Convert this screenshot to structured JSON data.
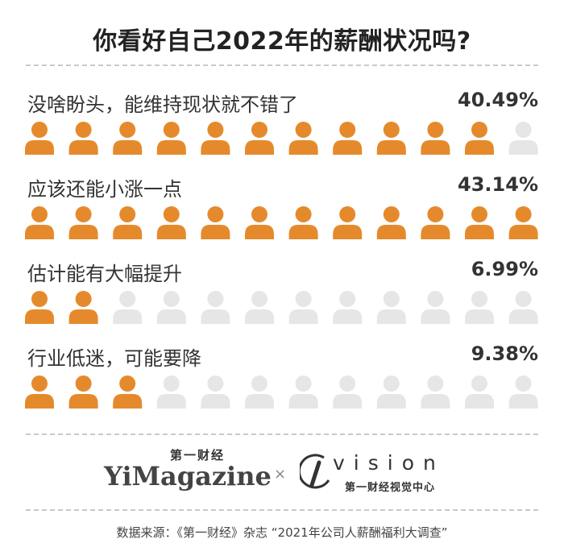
{
  "title": "你看好自己2022年的薪酬状况吗?",
  "chart_data": {
    "type": "pictograph",
    "total_icons": 12,
    "filled_color": "#E58A2C",
    "empty_color": "#E6E6E6",
    "categories": [
      "没啥盼头，能维持现状就不错了",
      "应该还能小涨一点",
      "估计能有大幅提升",
      "行业低迷，可能要降"
    ],
    "values": [
      40.49,
      43.14,
      6.99,
      9.38
    ],
    "value_labels": [
      "40.49%",
      "43.14%",
      "6.99%",
      "9.38%"
    ],
    "filled_icons": [
      11,
      12,
      2,
      3
    ]
  },
  "brand": {
    "cn": "第一财经",
    "en": "YiMagazine",
    "cross": "×",
    "vision": "vision",
    "vision_cn": "第一财经视觉中心"
  },
  "source": "数据来源：《第一财经》杂志 “2021年公司人薪酬福利大调查”"
}
